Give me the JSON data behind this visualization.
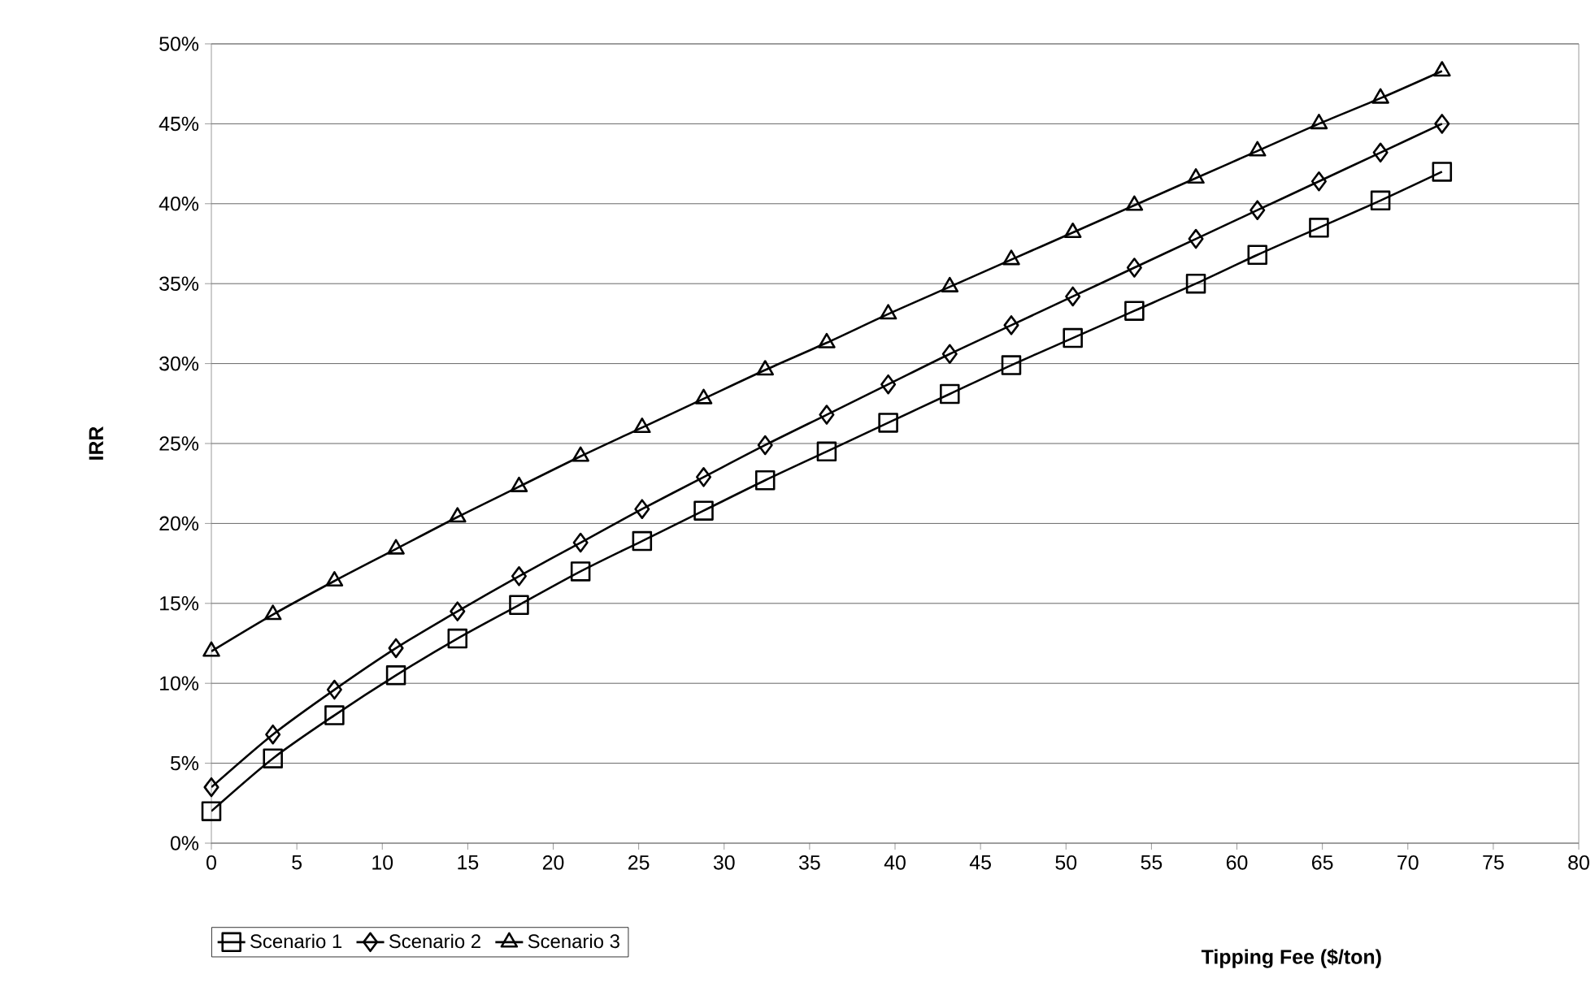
{
  "chart_data": {
    "type": "line",
    "xlabel": "Tipping Fee ($/ton)",
    "ylabel": "IRR",
    "x": [
      0,
      3.6,
      7.2,
      10.8,
      14.4,
      18,
      21.6,
      25.2,
      28.8,
      32.4,
      36,
      39.6,
      43.2,
      46.8,
      50.4,
      54,
      57.6,
      61.2,
      64.8,
      68.4,
      72
    ],
    "series": [
      {
        "name": "Scenario 1",
        "color": "#000000",
        "marker": "square",
        "values": [
          2.0,
          5.3,
          8.0,
          10.5,
          12.8,
          14.9,
          17.0,
          18.9,
          20.8,
          22.7,
          24.5,
          26.3,
          28.1,
          29.9,
          31.6,
          33.3,
          35.0,
          36.8,
          38.5,
          40.2,
          42.0
        ]
      },
      {
        "name": "Scenario 2",
        "color": "#000000",
        "marker": "diamond",
        "values": [
          3.5,
          6.8,
          9.6,
          12.2,
          14.5,
          16.7,
          18.8,
          20.9,
          22.9,
          24.9,
          26.8,
          28.7,
          30.6,
          32.4,
          34.2,
          36.0,
          37.8,
          39.6,
          41.4,
          43.2,
          45.0
        ]
      },
      {
        "name": "Scenario 3",
        "color": "#000000",
        "marker": "triangle",
        "values": [
          12.0,
          14.3,
          16.4,
          18.4,
          20.4,
          22.3,
          24.2,
          26.0,
          27.8,
          29.6,
          31.3,
          33.1,
          34.8,
          36.5,
          38.2,
          39.9,
          41.6,
          43.3,
          45.0,
          46.6,
          48.3
        ]
      }
    ],
    "xlim": [
      0,
      80
    ],
    "xticks": [
      0,
      5,
      10,
      15,
      20,
      25,
      30,
      35,
      40,
      45,
      50,
      55,
      60,
      65,
      70,
      75,
      80
    ],
    "ylim": [
      0,
      50
    ],
    "yticks": [
      {
        "value": 0,
        "label": "0%"
      },
      {
        "value": 5,
        "label": "5%"
      },
      {
        "value": 10,
        "label": "10%"
      },
      {
        "value": 15,
        "label": "15%"
      },
      {
        "value": 20,
        "label": "20%"
      },
      {
        "value": 25,
        "label": "25%"
      },
      {
        "value": 30,
        "label": "30%"
      },
      {
        "value": 35,
        "label": "35%"
      },
      {
        "value": 40,
        "label": "40%"
      },
      {
        "value": 45,
        "label": "45%"
      },
      {
        "value": 50,
        "label": "50%"
      }
    ],
    "grid": "y",
    "legend": "bottom left",
    "line_style": "solid"
  }
}
